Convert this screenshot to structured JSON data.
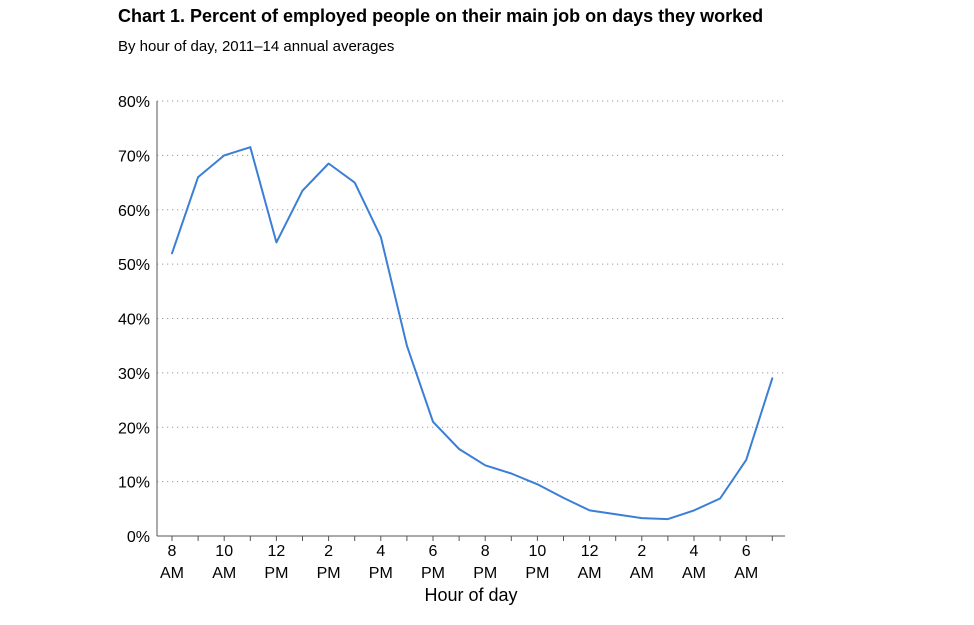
{
  "chart_data": {
    "type": "line",
    "title": "Chart 1. Percent of employed people on their main job on days they worked",
    "subtitle": "By hour of day, 2011–14 annual averages",
    "xlabel": "Hour of day",
    "ylabel": "",
    "ylim": [
      0,
      80
    ],
    "grid": true,
    "y_ticks": [
      "0%",
      "10%",
      "20%",
      "30%",
      "40%",
      "50%",
      "60%",
      "70%",
      "80%"
    ],
    "x_tick_labels": [
      [
        "8",
        "AM"
      ],
      [
        "10",
        "AM"
      ],
      [
        "12",
        "PM"
      ],
      [
        "2",
        "PM"
      ],
      [
        "4",
        "PM"
      ],
      [
        "6",
        "PM"
      ],
      [
        "8",
        "PM"
      ],
      [
        "10",
        "PM"
      ],
      [
        "12",
        "AM"
      ],
      [
        "2",
        "AM"
      ],
      [
        "4",
        "AM"
      ],
      [
        "6",
        "AM"
      ]
    ],
    "line_color": "#3a7fd5",
    "x": [
      "8 AM",
      "9 AM",
      "10 AM",
      "11 AM",
      "12 PM",
      "1 PM",
      "2 PM",
      "3 PM",
      "4 PM",
      "5 PM",
      "6 PM",
      "7 PM",
      "8 PM",
      "9 PM",
      "10 PM",
      "11 PM",
      "12 AM",
      "1 AM",
      "2 AM",
      "3 AM",
      "4 AM",
      "5 AM",
      "6 AM",
      "7 AM"
    ],
    "series": [
      {
        "values": [
          52,
          66,
          70,
          71.5,
          54,
          63.5,
          68.5,
          65,
          55,
          35,
          21,
          16,
          13,
          11.5,
          9.5,
          7,
          4.7,
          4,
          3.3,
          3.1,
          4.7,
          6.9,
          14,
          29
        ]
      }
    ]
  }
}
